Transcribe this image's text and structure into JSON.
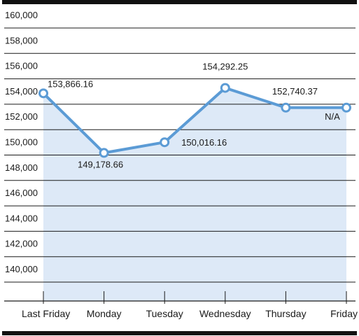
{
  "chart_data": {
    "type": "line",
    "title": "",
    "xlabel": "",
    "ylabel": "",
    "categories": [
      "Last Friday",
      "Monday",
      "Tuesday",
      "Wednesday",
      "Thursday",
      "Friday"
    ],
    "series": [
      {
        "values": [
          153866.16,
          149178.66,
          150016.16,
          154292.25,
          152740.37,
          152740.37
        ]
      }
    ],
    "data_labels": [
      "153,866.16",
      "149,178.66",
      "150,016.16",
      "154,292.25",
      "152,740.37",
      "N/A"
    ],
    "y_ticks": [
      140000,
      142000,
      144000,
      146000,
      148000,
      150000,
      152000,
      154000,
      156000,
      158000,
      160000
    ],
    "y_tick_labels": [
      "140,000",
      "142,000",
      "144,000",
      "146,000",
      "148,000",
      "150,000",
      "152,000",
      "154,000",
      "156,000",
      "158,000",
      "160,000"
    ],
    "ylim": [
      138000,
      160000
    ],
    "grid": true,
    "colors": {
      "line": "#5b9bd5",
      "fill": "#dde9f7",
      "grid": "#1a1a1a",
      "frame": "#111111"
    }
  }
}
